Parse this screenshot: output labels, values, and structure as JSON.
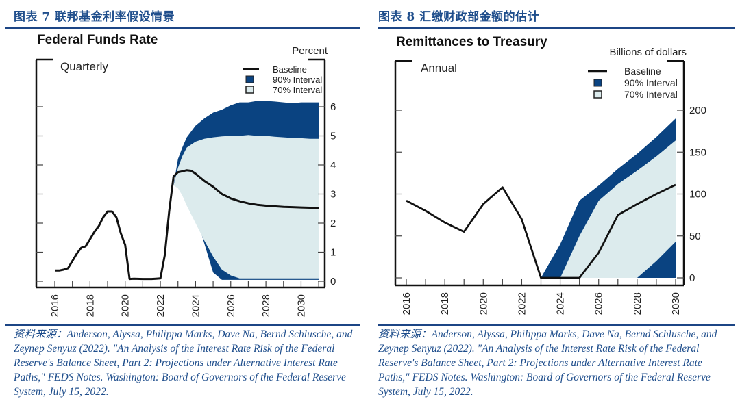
{
  "colors": {
    "heading": "#1f4e8c",
    "rule": "#1c4585",
    "band90": "#0a4381",
    "band70": "#dcebed",
    "baseline": "#111111"
  },
  "left_panel": {
    "figure_title": "图表 7 联邦基金利率假设情景",
    "source": "资料来源：Anderson, Alyssa, Philippa Marks, Dave Na, Bernd Schlusche, and Zeynep Senyuz (2022). \"An Analysis of the Interest Rate Risk of the Federal Reserve's Balance Sheet, Part 2: Projections under Alternative Interest Rate Paths,\" FEDS Notes. Washington: Board of Governors of the Federal Reserve System, July 15, 2022."
  },
  "right_panel": {
    "figure_title": "图表 8 汇缴财政部金额的估计",
    "source": "资料来源：Anderson, Alyssa, Philippa Marks, Dave Na, Bernd Schlusche, and Zeynep Senyuz (2022). \"An Analysis of the Interest Rate Risk of the Federal Reserve's Balance Sheet, Part 2: Projections under Alternative Interest Rate Paths,\" FEDS Notes. Washington: Board of Governors of the Federal Reserve System, July 15, 2022."
  },
  "chart_data": [
    {
      "type": "area",
      "title": "Federal Funds Rate",
      "subtitle": "Quarterly",
      "ylabel": "Percent",
      "xlabel": "",
      "xlim": [
        2015.5,
        2031.0
      ],
      "ylim": [
        0,
        6.5
      ],
      "yticks": [
        0,
        1,
        2,
        3,
        4,
        5,
        6
      ],
      "xticks": [
        2016,
        2017,
        2018,
        2019,
        2020,
        2021,
        2022,
        2023,
        2024,
        2025,
        2026,
        2027,
        2028,
        2029,
        2030,
        2031
      ],
      "xtick_labels": [
        "2016",
        "2018",
        "2020",
        "2022",
        "2024",
        "2026",
        "2028",
        "2030"
      ],
      "xtick_label_values": [
        2016,
        2018,
        2020,
        2022,
        2024,
        2026,
        2028,
        2030
      ],
      "legend": {
        "position": "top-right",
        "entries": [
          "Baseline",
          "90% Interval",
          "70% Interval"
        ]
      },
      "series": [
        {
          "name": "Baseline",
          "x": [
            2016.0,
            2016.25,
            2016.5,
            2016.75,
            2017.0,
            2017.25,
            2017.5,
            2017.75,
            2018.0,
            2018.25,
            2018.5,
            2018.75,
            2019.0,
            2019.25,
            2019.5,
            2019.75,
            2020.0,
            2020.25,
            2020.5,
            2021.0,
            2021.5,
            2021.75,
            2022.0,
            2022.25,
            2022.5,
            2022.75,
            2023.0,
            2023.25,
            2023.5,
            2023.75,
            2024.0,
            2024.5,
            2025.0,
            2025.5,
            2026.0,
            2026.5,
            2027.0,
            2027.5,
            2028.0,
            2028.5,
            2029.0,
            2029.5,
            2030.0,
            2030.5,
            2031.0
          ],
          "values": [
            0.37,
            0.37,
            0.4,
            0.45,
            0.7,
            0.95,
            1.15,
            1.2,
            1.45,
            1.7,
            1.9,
            2.2,
            2.4,
            2.4,
            2.2,
            1.65,
            1.25,
            0.08,
            0.09,
            0.08,
            0.08,
            0.09,
            0.1,
            0.9,
            2.4,
            3.6,
            3.75,
            3.78,
            3.82,
            3.8,
            3.7,
            3.45,
            3.25,
            3.0,
            2.85,
            2.75,
            2.68,
            2.63,
            2.6,
            2.58,
            2.56,
            2.55,
            2.54,
            2.53,
            2.53
          ]
        },
        {
          "name": "90% Interval",
          "x": [
            2022.75,
            2023.0,
            2023.25,
            2023.5,
            2024.0,
            2024.5,
            2025.0,
            2025.5,
            2026.0,
            2026.5,
            2027.0,
            2027.5,
            2028.0,
            2028.5,
            2029.0,
            2029.5,
            2030.0,
            2030.5,
            2031.0
          ],
          "upper": [
            3.3,
            4.2,
            4.6,
            4.95,
            5.35,
            5.6,
            5.8,
            5.9,
            6.05,
            6.15,
            6.15,
            6.2,
            6.2,
            6.18,
            6.15,
            6.12,
            6.15,
            6.15,
            6.15
          ],
          "lower": [
            3.3,
            3.4,
            3.1,
            2.8,
            2.3,
            1.3,
            0.3,
            0.05,
            0.05,
            0.05,
            0.05,
            0.05,
            0.05,
            0.05,
            0.05,
            0.05,
            0.05,
            0.05,
            0.05
          ]
        },
        {
          "name": "70% Interval",
          "x": [
            2022.75,
            2023.0,
            2023.25,
            2023.5,
            2024.0,
            2024.5,
            2025.0,
            2025.5,
            2026.0,
            2026.5,
            2027.0,
            2027.5,
            2028.0,
            2028.5,
            2029.0,
            2029.5,
            2030.0,
            2030.5,
            2031.0
          ],
          "upper": [
            3.3,
            3.9,
            4.3,
            4.6,
            4.8,
            4.9,
            4.95,
            4.98,
            5.0,
            5.0,
            5.03,
            5.0,
            5.0,
            4.97,
            4.95,
            4.93,
            4.92,
            4.9,
            4.9
          ],
          "lower": [
            3.3,
            3.2,
            2.95,
            2.6,
            2.0,
            1.4,
            0.85,
            0.4,
            0.2,
            0.1,
            0.1,
            0.1,
            0.1,
            0.1,
            0.1,
            0.1,
            0.1,
            0.1,
            0.1
          ]
        }
      ]
    },
    {
      "type": "area",
      "title": "Remittances to Treasury",
      "subtitle": "Annual",
      "ylabel": "Billions of dollars",
      "xlabel": "",
      "xlim": [
        2015.5,
        2030.5
      ],
      "ylim": [
        0,
        230
      ],
      "yticks": [
        0,
        50,
        100,
        150,
        200
      ],
      "xticks": [
        2016,
        2017,
        2018,
        2019,
        2020,
        2021,
        2022,
        2023,
        2024,
        2025,
        2026,
        2027,
        2028,
        2029,
        2030
      ],
      "xtick_labels": [
        "2016",
        "2018",
        "2020",
        "2022",
        "2024",
        "2026",
        "2028",
        "2030"
      ],
      "xtick_label_values": [
        2016,
        2018,
        2020,
        2022,
        2024,
        2026,
        2028,
        2030
      ],
      "legend": {
        "position": "top-right",
        "entries": [
          "Baseline",
          "90% Interval",
          "70% Interval"
        ]
      },
      "series": [
        {
          "name": "Baseline",
          "x": [
            2016,
            2017,
            2018,
            2019,
            2020,
            2021,
            2022,
            2023,
            2024,
            2025,
            2026,
            2027,
            2028,
            2029,
            2030
          ],
          "values": [
            92,
            80,
            66,
            55,
            88,
            108,
            70,
            0,
            0,
            0,
            30,
            75,
            88,
            100,
            111
          ]
        },
        {
          "name": "90% Interval",
          "x": [
            2023,
            2024,
            2025,
            2026,
            2027,
            2028,
            2029,
            2030
          ],
          "upper": [
            0,
            40,
            92,
            110,
            130,
            148,
            168,
            190
          ],
          "lower": [
            0,
            0,
            0,
            0,
            0,
            0,
            20,
            43
          ]
        },
        {
          "name": "70% Interval",
          "x": [
            2023,
            2024,
            2025,
            2026,
            2027,
            2028,
            2029,
            2030
          ],
          "upper": [
            0,
            0,
            50,
            92,
            112,
            128,
            145,
            164
          ],
          "lower": [
            0,
            0,
            0,
            0,
            0,
            0,
            0,
            0
          ]
        }
      ]
    }
  ]
}
